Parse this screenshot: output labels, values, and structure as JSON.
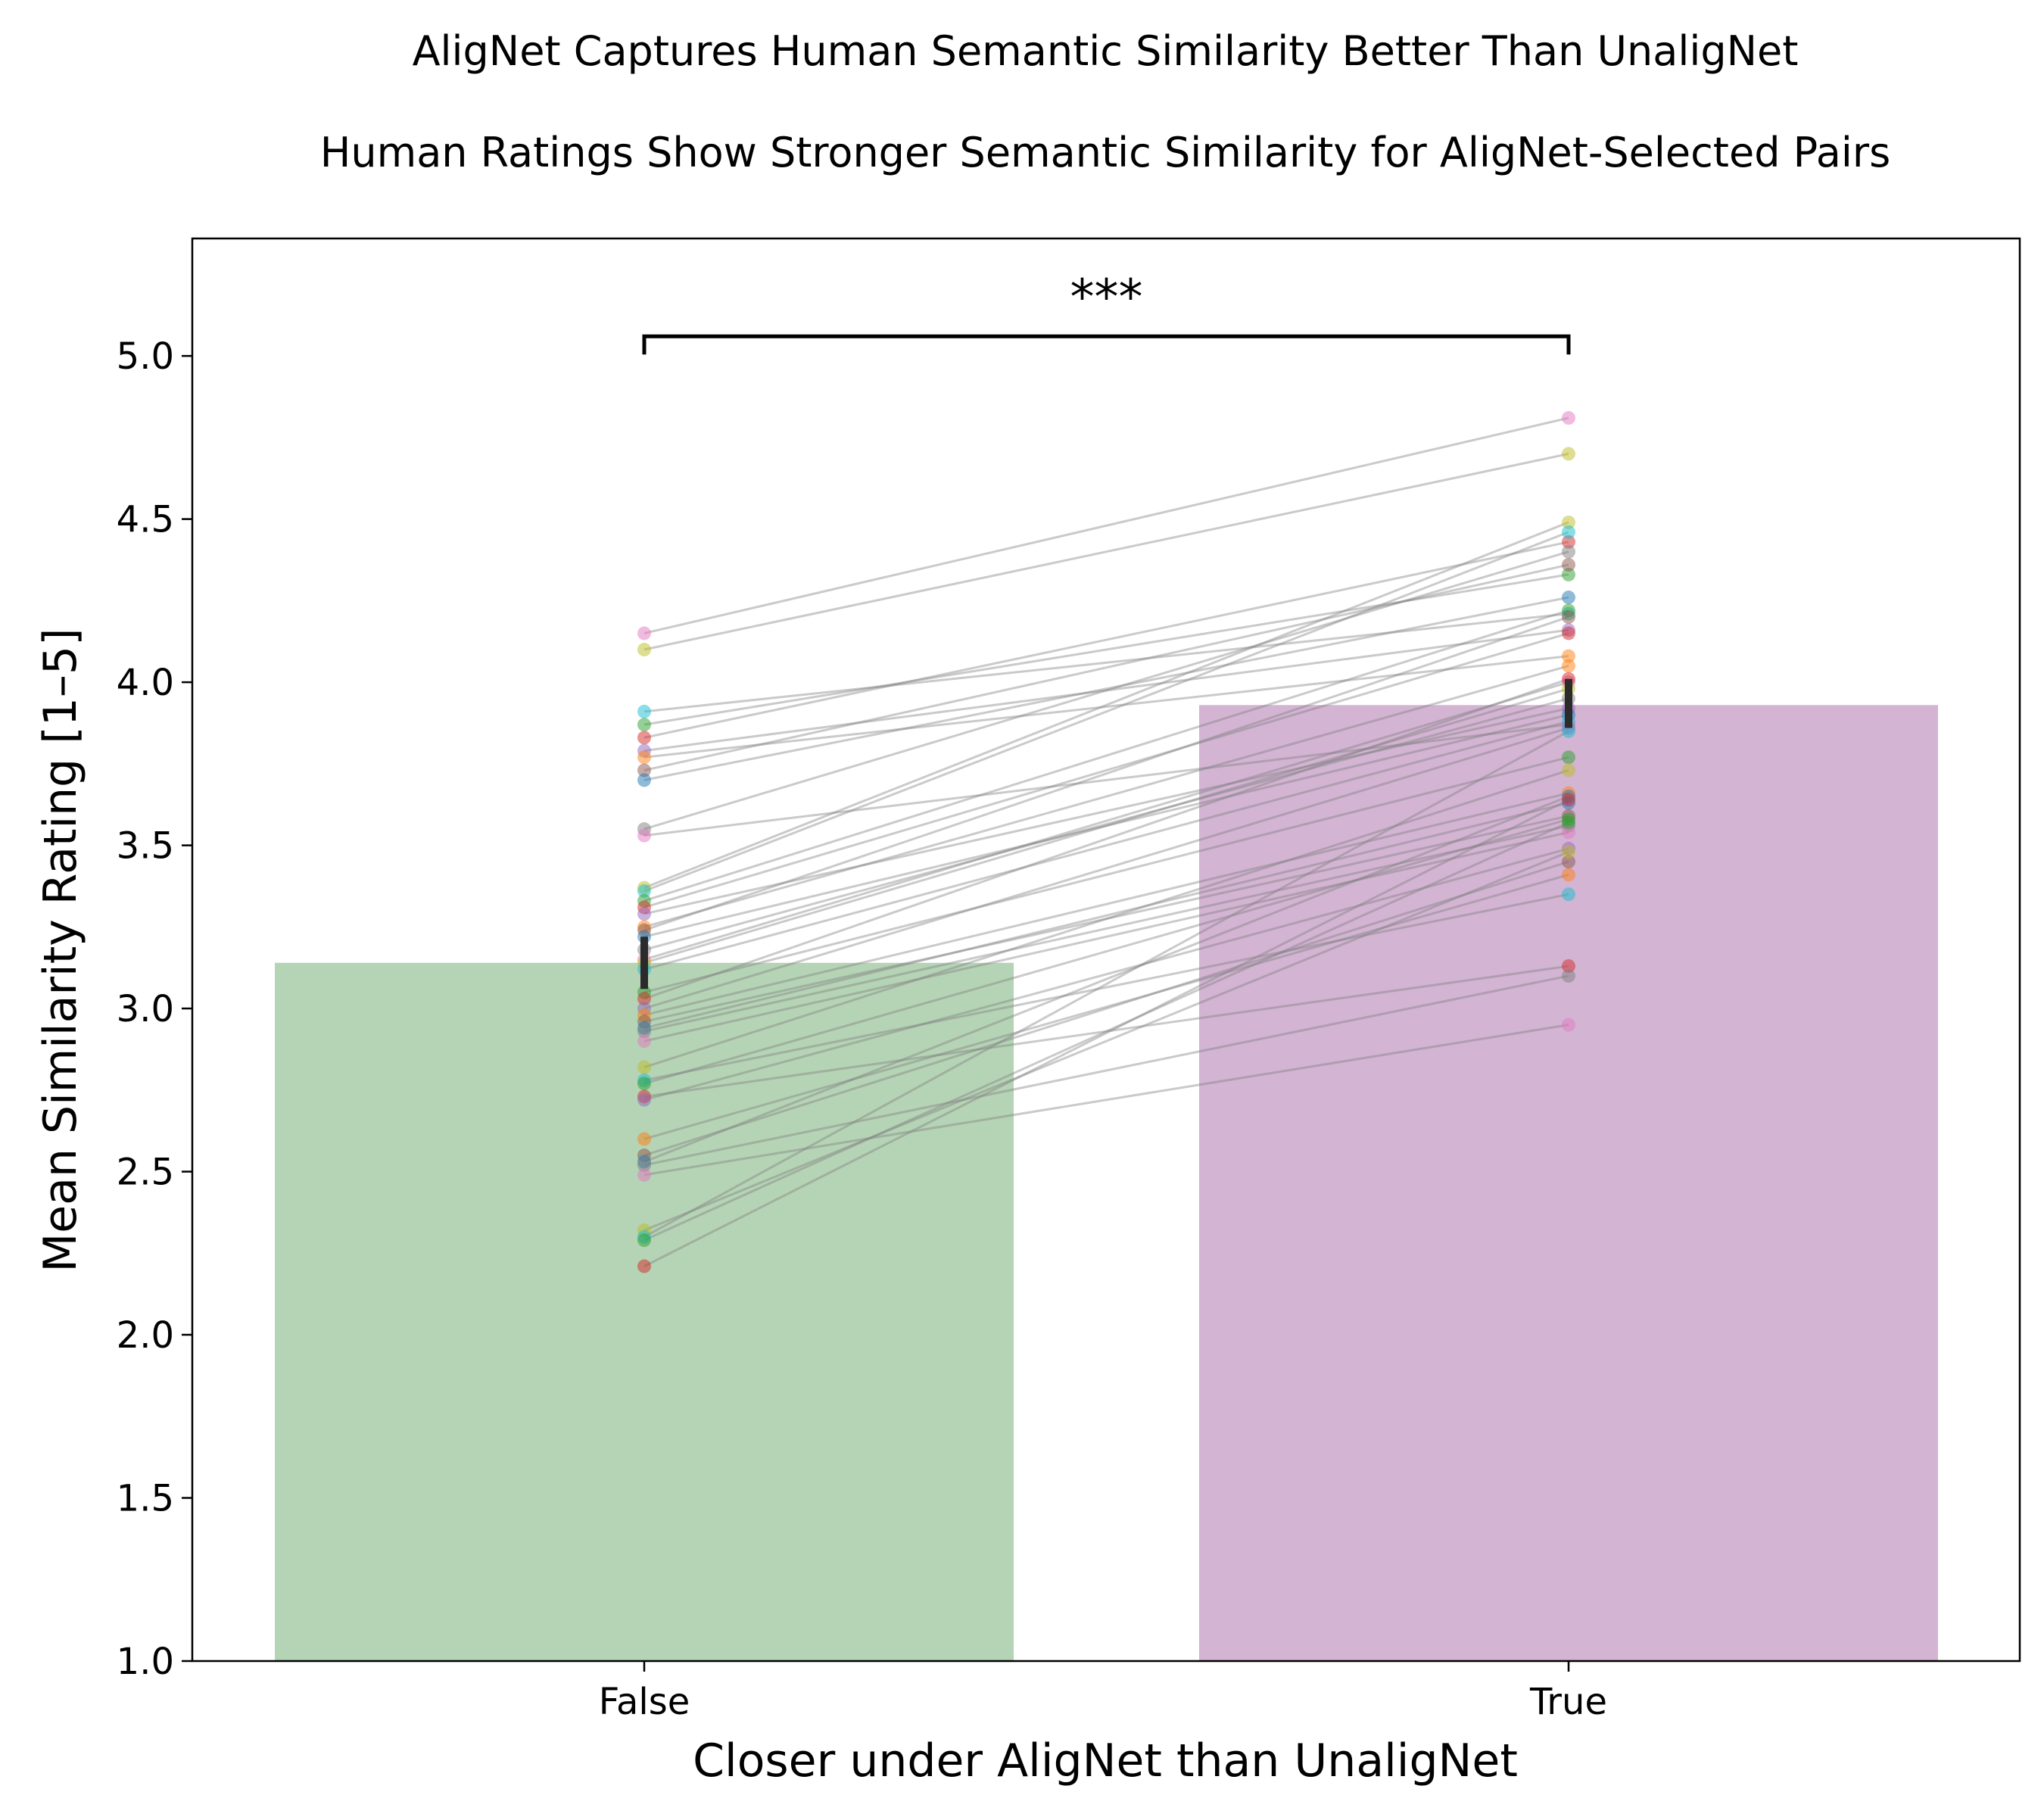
{
  "chart_data": {
    "type": "bar",
    "title": "AligNet Captures Human Semantic Similarity Better Than UnaligNet",
    "subtitle": "Human Ratings Show Stronger Semantic Similarity for AligNet-Selected Pairs",
    "xlabel": "Closer under AligNet than UnaligNet",
    "ylabel": "Mean Similarity Rating [1–5]",
    "categories": [
      "False",
      "True"
    ],
    "values": [
      3.14,
      3.93
    ],
    "error": [
      [
        3.06,
        3.22
      ],
      [
        3.86,
        4.01
      ]
    ],
    "bar_colors": [
      "#b5d3b5",
      "#d3b4d3"
    ],
    "ylim": [
      1.0,
      5.36
    ],
    "yticks": [
      "1.0",
      "1.5",
      "2.0",
      "2.5",
      "3.0",
      "3.5",
      "4.0",
      "4.5",
      "5.0"
    ],
    "grid": false,
    "significance": {
      "label": "***",
      "y": 5.06,
      "between": [
        0,
        1
      ]
    },
    "paired_points": [
      [
        4.15,
        4.81
      ],
      [
        4.1,
        4.7
      ],
      [
        3.91,
        4.21
      ],
      [
        3.87,
        4.33
      ],
      [
        3.83,
        4.43
      ],
      [
        3.79,
        4.16
      ],
      [
        3.77,
        4.08
      ],
      [
        3.73,
        4.36
      ],
      [
        3.7,
        4.26
      ],
      [
        3.55,
        4.4
      ],
      [
        3.53,
        3.87
      ],
      [
        3.37,
        4.49
      ],
      [
        3.36,
        4.46
      ],
      [
        3.33,
        4.22
      ],
      [
        3.31,
        4.15
      ],
      [
        3.29,
        3.92
      ],
      [
        3.25,
        4.05
      ],
      [
        3.24,
        4.2
      ],
      [
        3.22,
        3.9
      ],
      [
        3.18,
        3.95
      ],
      [
        3.15,
        4.0
      ],
      [
        3.14,
        3.98
      ],
      [
        3.12,
        3.88
      ],
      [
        3.05,
        3.77
      ],
      [
        3.03,
        4.01
      ],
      [
        3.0,
        3.86
      ],
      [
        2.98,
        3.66
      ],
      [
        2.96,
        3.59
      ],
      [
        2.94,
        3.63
      ],
      [
        2.93,
        3.56
      ],
      [
        2.9,
        3.54
      ],
      [
        2.82,
        3.73
      ],
      [
        2.78,
        3.35
      ],
      [
        2.77,
        3.58
      ],
      [
        2.73,
        3.13
      ],
      [
        2.72,
        3.49
      ],
      [
        2.6,
        3.41
      ],
      [
        2.55,
        3.45
      ],
      [
        2.53,
        3.65
      ],
      [
        2.52,
        3.1
      ],
      [
        2.49,
        2.95
      ],
      [
        2.32,
        3.48
      ],
      [
        2.3,
        3.85
      ],
      [
        2.29,
        3.57
      ],
      [
        2.21,
        3.64
      ]
    ],
    "point_colors": [
      "#e377c2",
      "#bcbd22",
      "#17becf",
      "#2ca02c",
      "#d62728",
      "#9467bd",
      "#ff7f0e",
      "#8c564b",
      "#1f77b4",
      "#7f7f7f"
    ]
  }
}
